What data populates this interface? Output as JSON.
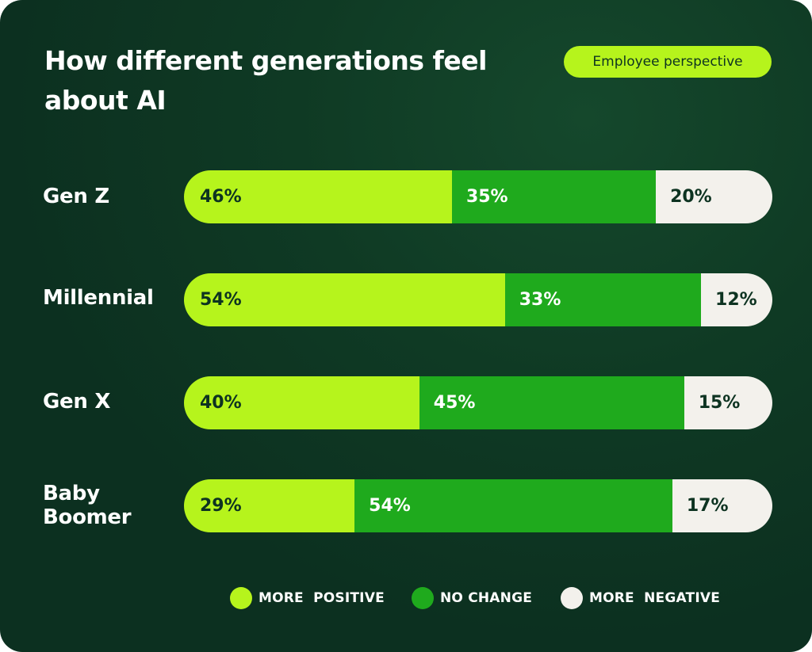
{
  "chart_data": {
    "type": "bar",
    "orientation": "horizontal",
    "stacked": true,
    "title": "How different generations feel about AI",
    "badge": "Employee perspective",
    "categories": [
      "Gen Z",
      "Millennial",
      "Gen X",
      "Baby Boomer"
    ],
    "series": [
      {
        "name": "MORE  POSITIVE",
        "key": "positive",
        "color": "#b6f41c",
        "values": [
          46,
          54,
          40,
          29
        ]
      },
      {
        "name": "NO CHANGE",
        "key": "nochange",
        "color": "#1faa1d",
        "values": [
          35,
          33,
          45,
          54
        ]
      },
      {
        "name": "MORE  NEGATIVE",
        "key": "negative",
        "color": "#f3f1ec",
        "values": [
          20,
          12,
          15,
          17
        ]
      }
    ],
    "value_suffix": "%",
    "xlim": [
      0,
      100
    ],
    "xlabel": "",
    "ylabel": "",
    "legend_position": "bottom"
  }
}
